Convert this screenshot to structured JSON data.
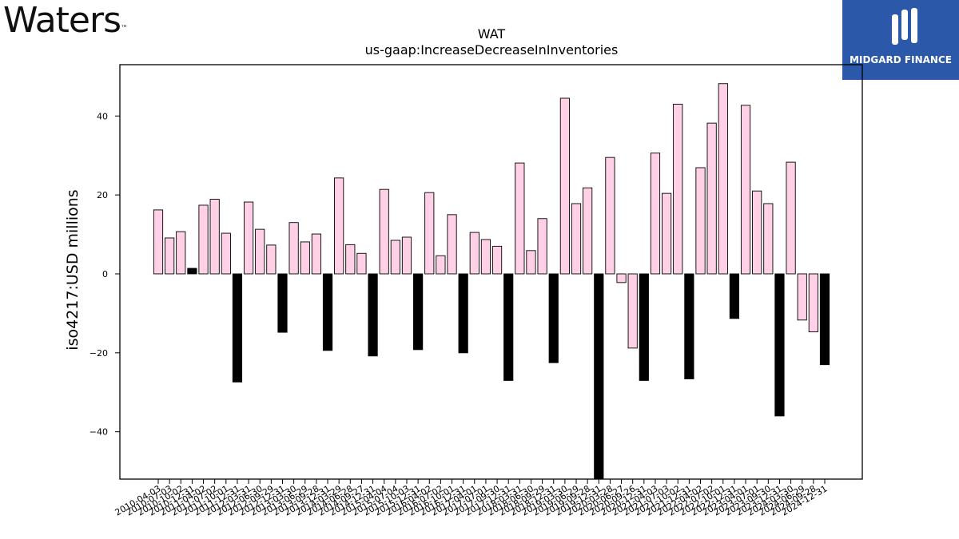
{
  "branding": {
    "company_wordmark": "Waters",
    "trademark": "™",
    "badge_name": "MIDGARD FINANCE"
  },
  "colors": {
    "positive_fill": "#ffd0e6",
    "negative_fill": "#000000",
    "badge_bg": "#2b58a8"
  },
  "chart_data": {
    "type": "bar",
    "title": "WAT",
    "subtitle": "us-gaap:IncreaseDecreaseInInventories",
    "ylabel": "iso4217:USD  millions",
    "xlabel": "",
    "ylim": [
      -52,
      53
    ],
    "yticks": [
      -40,
      -20,
      0,
      20,
      40
    ],
    "grid": false,
    "categories": [
      "2010-04-03",
      "2010-07-03",
      "2010-10-02",
      "2010-12-31",
      "2011-04-02",
      "2011-07-02",
      "2011-10-01",
      "2011-12-31",
      "2012-03-31",
      "2012-06-30",
      "2012-09-29",
      "2012-12-31",
      "2013-03-30",
      "2013-06-29",
      "2013-09-28",
      "2013-12-31",
      "2014-03-29",
      "2014-06-28",
      "2014-09-27",
      "2014-12-31",
      "2015-04-04",
      "2015-07-04",
      "2015-10-03",
      "2015-12-31",
      "2016-04-02",
      "2016-07-02",
      "2016-10-01",
      "2016-12-31",
      "2017-04-01",
      "2017-07-01",
      "2017-09-30",
      "2017-12-31",
      "2018-03-31",
      "2018-06-30",
      "2018-09-29",
      "2018-12-31",
      "2019-03-30",
      "2019-06-29",
      "2019-09-28",
      "2019-12-31",
      "2020-03-28",
      "2020-06-27",
      "2020-09-26",
      "2020-12-31",
      "2021-04-03",
      "2021-07-03",
      "2021-10-02",
      "2021-12-31",
      "2022-04-02",
      "2022-07-02",
      "2022-10-01",
      "2022-12-31",
      "2023-04-01",
      "2023-07-01",
      "2023-09-30",
      "2023-12-31",
      "2024-03-30",
      "2024-06-29",
      "2024-09-28",
      "2024-12-31"
    ],
    "values": [
      16.2,
      9.1,
      10.7,
      1.4,
      17.4,
      18.9,
      10.3,
      -27.4,
      18.2,
      11.3,
      7.3,
      -14.8,
      13.0,
      8.1,
      10.1,
      -19.4,
      24.3,
      7.4,
      5.2,
      -20.8,
      21.4,
      8.5,
      9.3,
      -19.2,
      20.6,
      4.6,
      15.0,
      -20.0,
      10.5,
      8.7,
      7.0,
      -27.0,
      28.1,
      5.9,
      14.0,
      -22.5,
      44.5,
      17.8,
      21.8,
      -52.0,
      29.5,
      -2.2,
      -18.8,
      -27.0,
      30.6,
      20.4,
      43.0,
      -26.6,
      26.9,
      38.2,
      48.2,
      -11.3,
      42.7,
      21.0,
      17.8,
      -36.0,
      28.3,
      -11.7,
      -14.7,
      -23.0
    ]
  }
}
